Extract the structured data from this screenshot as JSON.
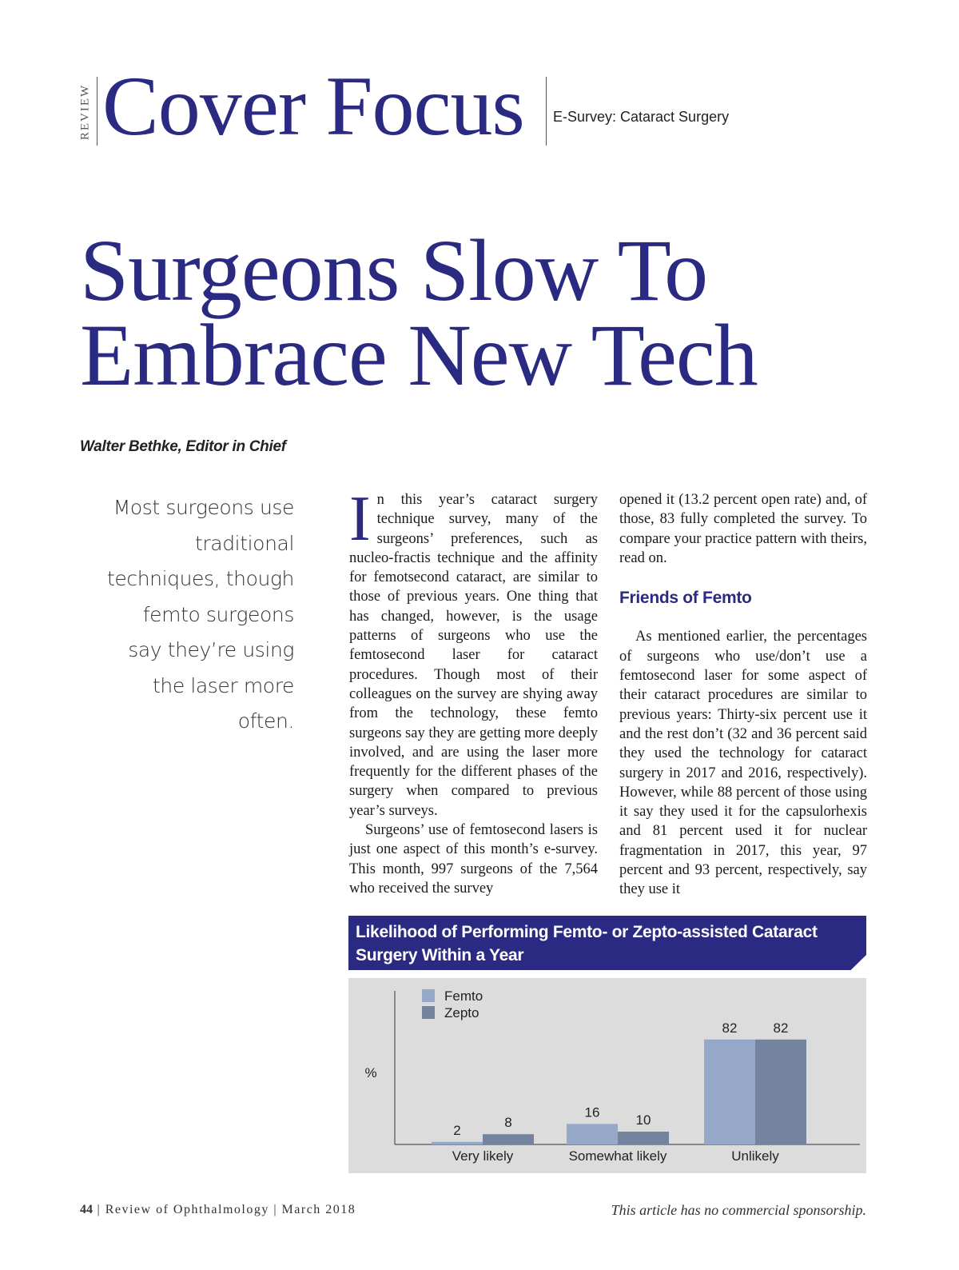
{
  "header": {
    "section_label": "REVIEW",
    "section_title": "Cover Focus",
    "section_subtitle": "E-Survey: Cataract Surgery"
  },
  "article": {
    "headline_line1": "Surgeons Slow To",
    "headline_line2": "Embrace New Tech",
    "byline": "Walter Bethke, Editor in Chief",
    "pull_quote": "Most surgeons use traditional techniques, though femto surgeons say they’re using the laser more often.",
    "drop_cap": "I",
    "para1": "n this year’s cataract surgery technique survey, many of the surgeons’ preferences, such as nucleo-fractis technique and the affinity for femotsecond cataract, are similar to those of previous years. One thing that has changed, however, is the usage patterns of surgeons who use the femtosecond laser for cataract procedures. Though most of their colleagues on the survey are shying away from the technology, these femto surgeons say they are getting more deeply involved, and are using the laser more frequently for the different phases of the surgery when compared to previous year’s surveys.",
    "para2": "Surgeons’ use of femtosecond lasers is just one aspect of this month’s e-survey. This month, 997 surgeons of the 7,564 who received the survey opened it (13.2 percent open rate) and, of those, 83 fully completed the survey. To compare your practice pattern with theirs, read on.",
    "subhead": "Friends of Femto",
    "para3": "As mentioned earlier, the percentages of surgeons who use/don’t use a femtosecond laser for some aspect of their cataract procedures are similar to previous years: Thirty-six percent use it and the rest don’t (32 and 36 percent said they used the technology for cataract surgery in 2017 and 2016, respectively). However, while 88 percent of those using it say they used it for the capsulorhexis and 81 percent used it for nuclear fragmentation in 2017, this year, 97 percent and 93 percent, respectively, say they use it"
  },
  "chart_data": {
    "type": "bar",
    "title": "Likelihood of Performing Femto- or Zepto-assisted Cataract Surgery Within a Year",
    "ylabel": "%",
    "xlabel": "",
    "categories": [
      "Very likely",
      "Somewhat likely",
      "Unlikely"
    ],
    "series": [
      {
        "name": "Femto",
        "values": [
          2,
          16,
          82
        ],
        "color": "#95a8c8"
      },
      {
        "name": "Zepto",
        "values": [
          8,
          10,
          82
        ],
        "color": "#74849e"
      }
    ],
    "ylim": [
      0,
      100
    ],
    "grid": false,
    "legend": "top-left"
  },
  "footer": {
    "page_number": "44",
    "publication": "Review of Ophthalmology",
    "issue_date": "March 2018",
    "sponsorship_note": "This article has no commercial sponsorship."
  }
}
